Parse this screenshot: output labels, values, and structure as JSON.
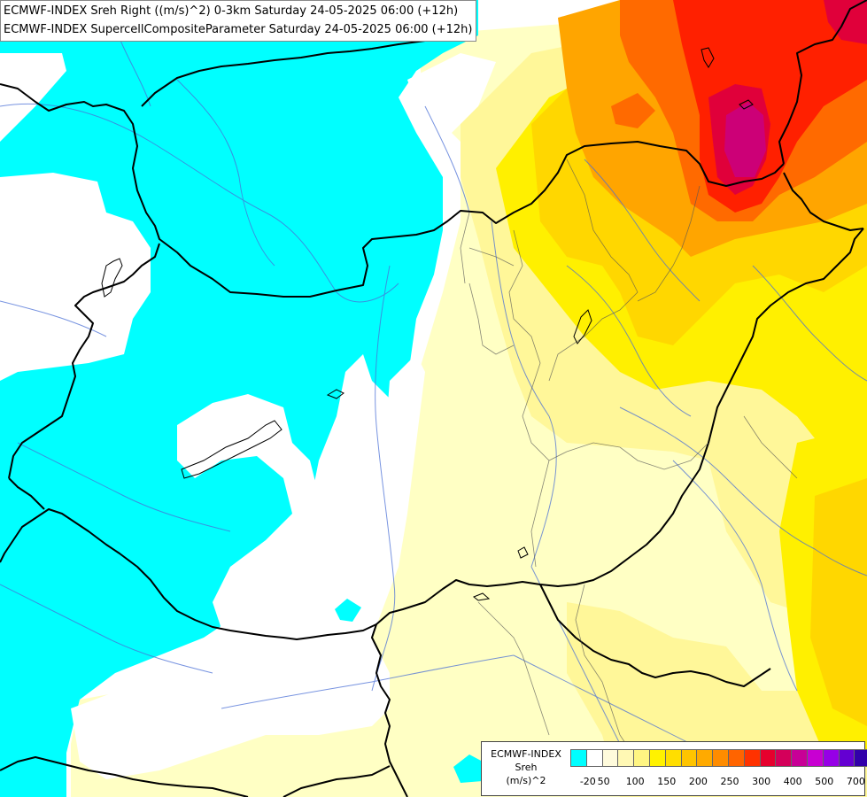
{
  "header": {
    "line1": "ECMWF-INDEX Sreh Right ((m/s)^2) 0-3km Saturday 24-05-2025 06:00 (+12h)",
    "line2": "ECMWF-INDEX SupercellCompositeParameter Saturday 24-05-2025 06:00 (+12h)"
  },
  "legend": {
    "title1": "ECMWF-INDEX",
    "title2": "Sreh",
    "title3": "(m/s)^2",
    "colors": [
      "#00ffff",
      "#ffffff",
      "#fffbdc",
      "#fff8b4",
      "#fff582",
      "#fff200",
      "#ffde00",
      "#ffc400",
      "#ffaa00",
      "#ff8c00",
      "#ff6400",
      "#ff3200",
      "#e6002d",
      "#d4005a",
      "#c80096",
      "#c800d2",
      "#9600e6",
      "#6400d2",
      "#3200aa",
      "#000080"
    ],
    "labels": [
      {
        "text": "-20",
        "index": 1
      },
      {
        "text": "50",
        "index": 2
      },
      {
        "text": "100",
        "index": 4
      },
      {
        "text": "150",
        "index": 6
      },
      {
        "text": "200",
        "index": 8
      },
      {
        "text": "250",
        "index": 10
      },
      {
        "text": "300",
        "index": 12
      },
      {
        "text": "400",
        "index": 14
      },
      {
        "text": "500",
        "index": 16
      },
      {
        "text": "700",
        "index": 18
      }
    ]
  },
  "map_colors": {
    "cyan": "#00ffff",
    "pale_yellow": "#ffffc4",
    "light_yellow": "#fff799",
    "yellow": "#fff000",
    "gold": "#ffd700",
    "orange": "#ffa500",
    "dark_orange": "#ff6a00",
    "red": "#ff2000",
    "crimson": "#e0003a",
    "magenta": "#cc0077"
  }
}
